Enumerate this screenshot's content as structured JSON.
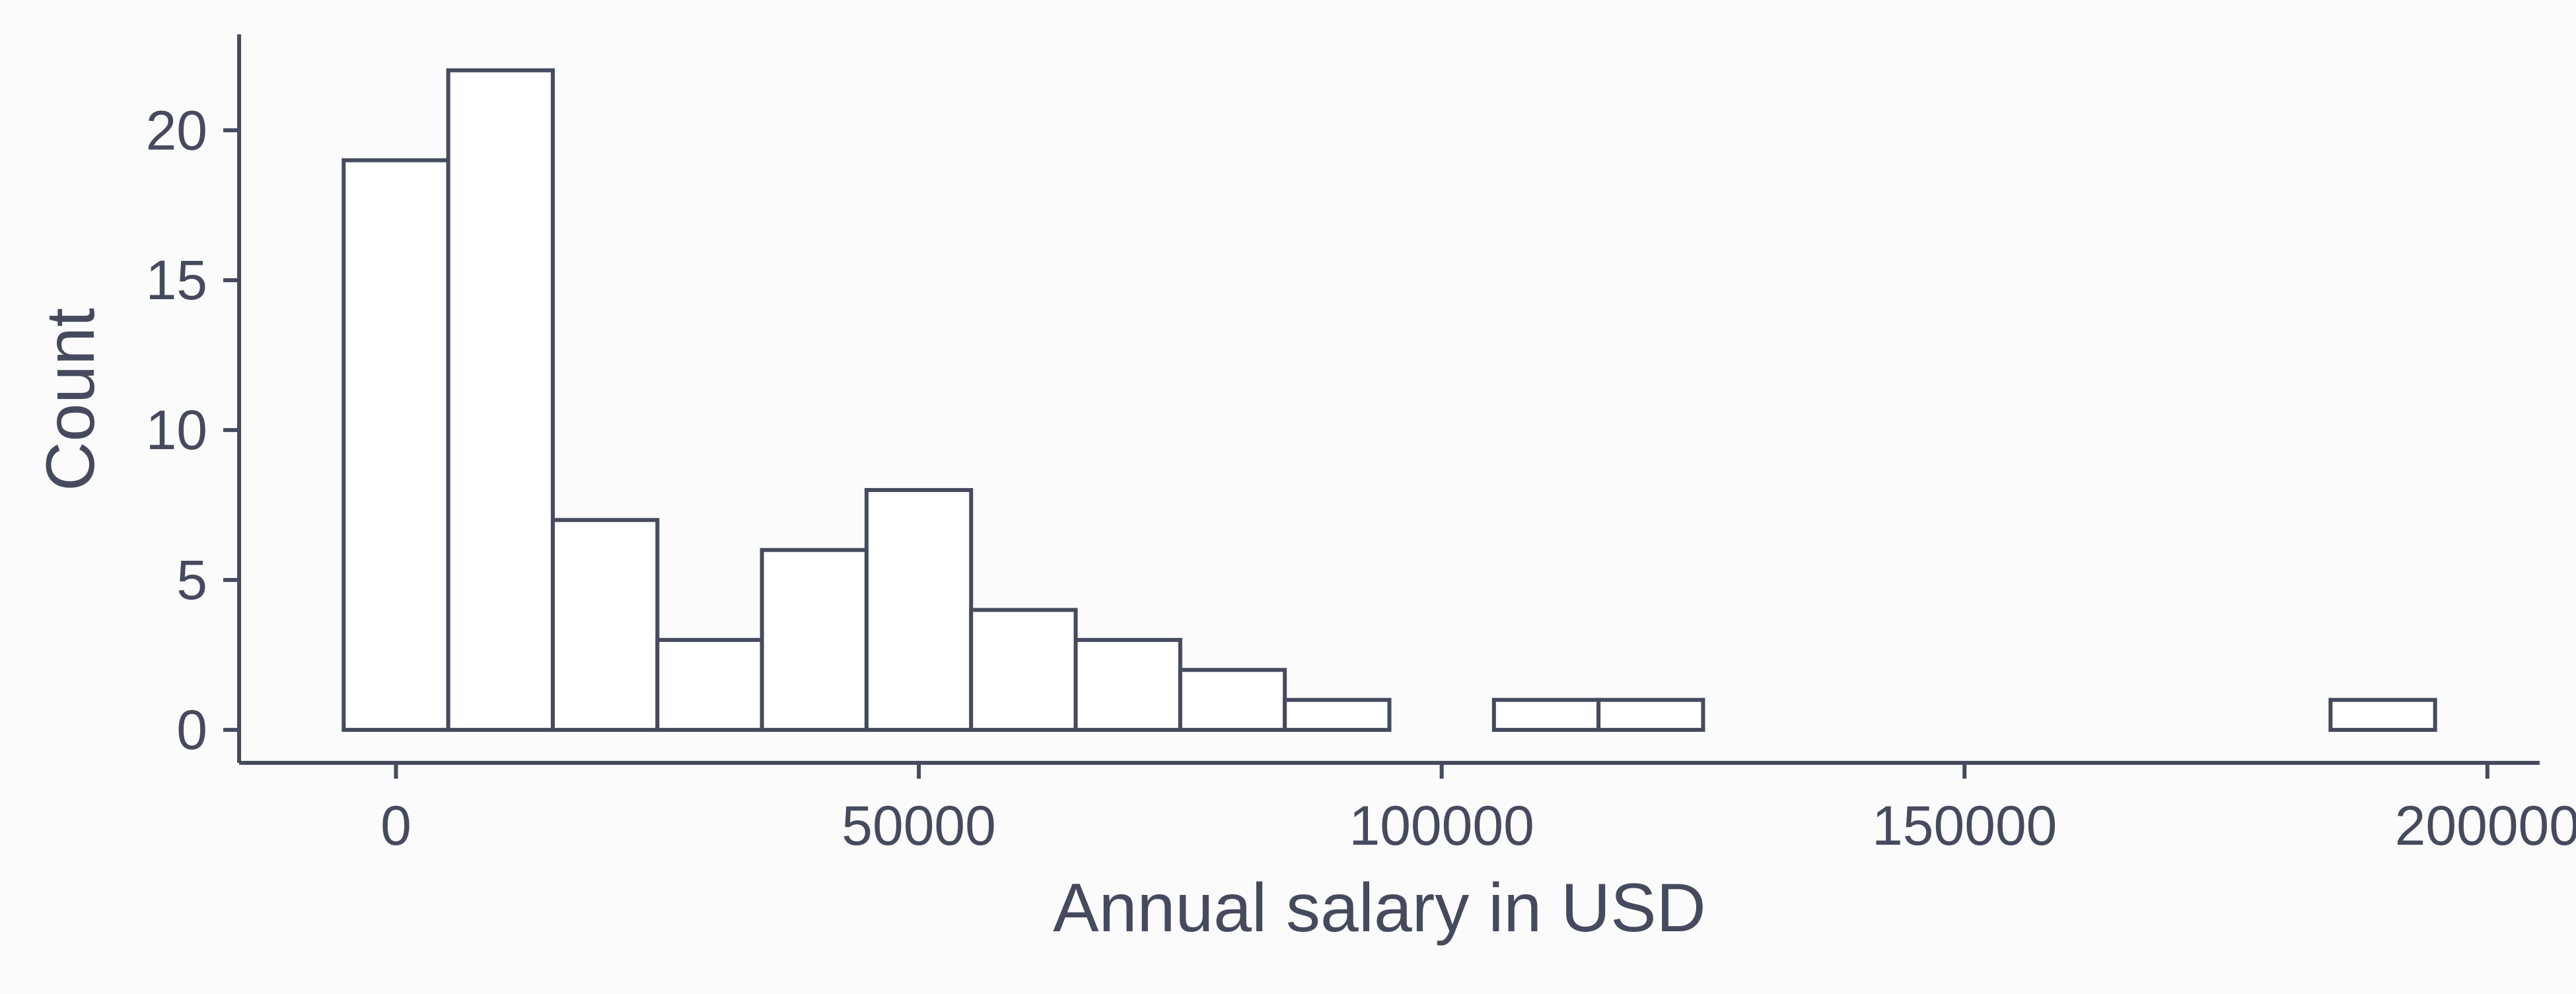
{
  "chart_data": {
    "type": "bar",
    "bins": [
      {
        "x0": -5000,
        "x1": 5000,
        "count": 19
      },
      {
        "x0": 5000,
        "x1": 15000,
        "count": 22
      },
      {
        "x0": 15000,
        "x1": 25000,
        "count": 7
      },
      {
        "x0": 25000,
        "x1": 35000,
        "count": 3
      },
      {
        "x0": 35000,
        "x1": 45000,
        "count": 6
      },
      {
        "x0": 45000,
        "x1": 55000,
        "count": 8
      },
      {
        "x0": 55000,
        "x1": 65000,
        "count": 4
      },
      {
        "x0": 65000,
        "x1": 75000,
        "count": 3
      },
      {
        "x0": 75000,
        "x1": 85000,
        "count": 2
      },
      {
        "x0": 85000,
        "x1": 95000,
        "count": 1
      },
      {
        "x0": 95000,
        "x1": 105000,
        "count": 0
      },
      {
        "x0": 105000,
        "x1": 115000,
        "count": 1
      },
      {
        "x0": 115000,
        "x1": 125000,
        "count": 1
      },
      {
        "x0": 125000,
        "x1": 135000,
        "count": 0
      },
      {
        "x0": 135000,
        "x1": 145000,
        "count": 0
      },
      {
        "x0": 145000,
        "x1": 155000,
        "count": 0
      },
      {
        "x0": 155000,
        "x1": 165000,
        "count": 0
      },
      {
        "x0": 165000,
        "x1": 175000,
        "count": 0
      },
      {
        "x0": 175000,
        "x1": 185000,
        "count": 0
      },
      {
        "x0": 185000,
        "x1": 195000,
        "count": 1
      }
    ],
    "title": "",
    "xlabel": "Annual salary in USD",
    "ylabel": "Count",
    "xlim": [
      -15000,
      205000
    ],
    "ylim": [
      -1.1,
      23.2
    ],
    "xticks": [
      0,
      50000,
      100000,
      150000,
      200000
    ],
    "xtick_labels": [
      "0",
      "50000",
      "100000",
      "150000",
      "200000"
    ],
    "yticks": [
      0,
      5,
      10,
      15,
      20
    ],
    "ytick_labels": [
      "0",
      "5",
      "10",
      "15",
      "20"
    ],
    "grid": false,
    "colors": {
      "ink": "#454a5e",
      "bar_fill": "#ffffff",
      "background": "#fbfbfb"
    }
  }
}
